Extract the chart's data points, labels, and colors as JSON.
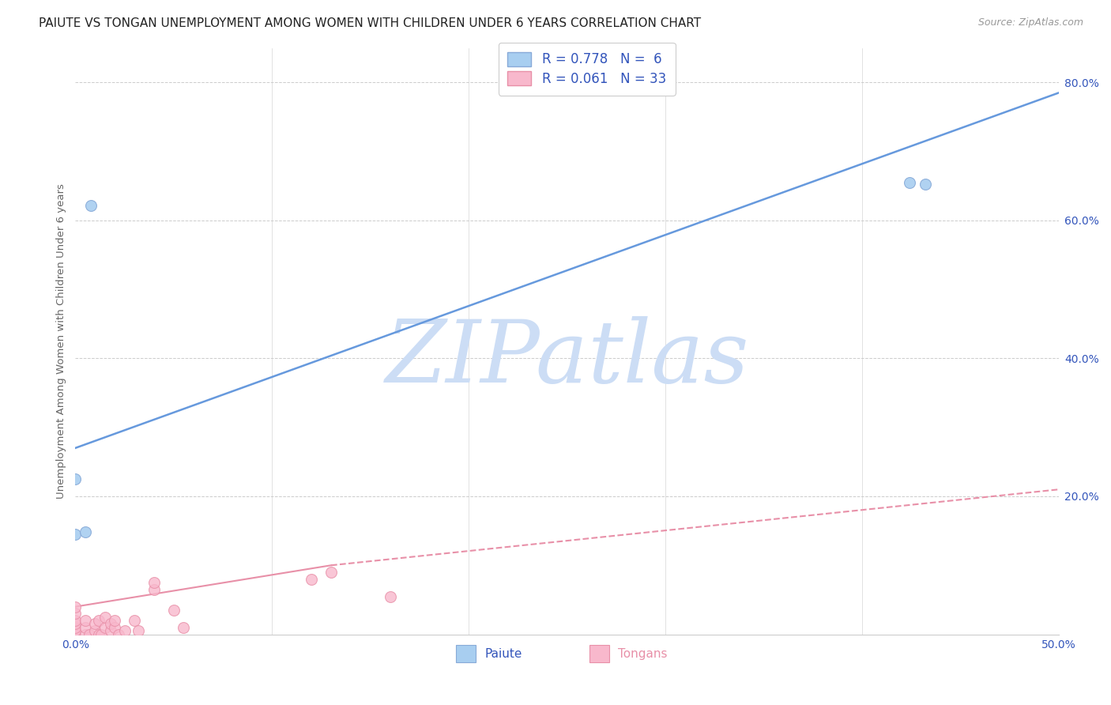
{
  "title": "PAIUTE VS TONGAN UNEMPLOYMENT AMONG WOMEN WITH CHILDREN UNDER 6 YEARS CORRELATION CHART",
  "source": "Source: ZipAtlas.com",
  "ylabel": "Unemployment Among Women with Children Under 6 years",
  "xlim": [
    0.0,
    0.5
  ],
  "ylim": [
    0.0,
    0.85
  ],
  "xticks": [
    0.0,
    0.1,
    0.2,
    0.3,
    0.4,
    0.5
  ],
  "yticks": [
    0.0,
    0.2,
    0.4,
    0.6,
    0.8
  ],
  "xtick_labels": [
    "0.0%",
    "",
    "",
    "",
    "",
    "50.0%"
  ],
  "ytick_labels": [
    "",
    "20.0%",
    "40.0%",
    "60.0%",
    "80.0%"
  ],
  "background_color": "#ffffff",
  "grid_color": "#cccccc",
  "paiute_color": "#a8cef0",
  "tongan_color": "#f8b8cc",
  "paiute_edge_color": "#88aad8",
  "tongan_edge_color": "#e890a8",
  "paiute_line_color": "#6699dd",
  "tongan_line_solid_color": "#e890a8",
  "tongan_line_dash_color": "#e890a8",
  "paiute_R": 0.778,
  "paiute_N": 6,
  "tongan_R": 0.061,
  "tongan_N": 33,
  "legend_text_color": "#3355bb",
  "watermark": "ZIPatlas",
  "watermark_color": "#ccddf5",
  "paiute_points_x": [
    0.008,
    0.0,
    0.0,
    0.424,
    0.432,
    0.005
  ],
  "paiute_points_y": [
    0.622,
    0.225,
    0.145,
    0.655,
    0.652,
    0.148
  ],
  "tongan_points_x": [
    0.0,
    0.0,
    0.0,
    0.0,
    0.0,
    0.0,
    0.0,
    0.005,
    0.005,
    0.005,
    0.007,
    0.01,
    0.01,
    0.012,
    0.012,
    0.013,
    0.015,
    0.015,
    0.018,
    0.018,
    0.02,
    0.02,
    0.022,
    0.025,
    0.03,
    0.032,
    0.04,
    0.04,
    0.05,
    0.055,
    0.12,
    0.13,
    0.16
  ],
  "tongan_points_y": [
    0.0,
    0.005,
    0.01,
    0.015,
    0.02,
    0.03,
    0.04,
    0.0,
    0.01,
    0.02,
    0.0,
    0.005,
    0.015,
    0.0,
    0.02,
    0.0,
    0.01,
    0.025,
    0.005,
    0.015,
    0.01,
    0.02,
    0.0,
    0.005,
    0.02,
    0.005,
    0.065,
    0.075,
    0.035,
    0.01,
    0.08,
    0.09,
    0.055
  ],
  "paiute_line_x": [
    0.0,
    0.5
  ],
  "paiute_line_y": [
    0.27,
    0.785
  ],
  "tongan_solid_line_x": [
    0.0,
    0.13
  ],
  "tongan_solid_line_y": [
    0.04,
    0.1
  ],
  "tongan_dash_line_x": [
    0.13,
    0.5
  ],
  "tongan_dash_line_y": [
    0.1,
    0.21
  ],
  "marker_size": 100,
  "axis_color": "#3355bb",
  "title_color": "#222222",
  "title_fontsize": 11,
  "source_fontsize": 9,
  "legend_fontsize": 12
}
